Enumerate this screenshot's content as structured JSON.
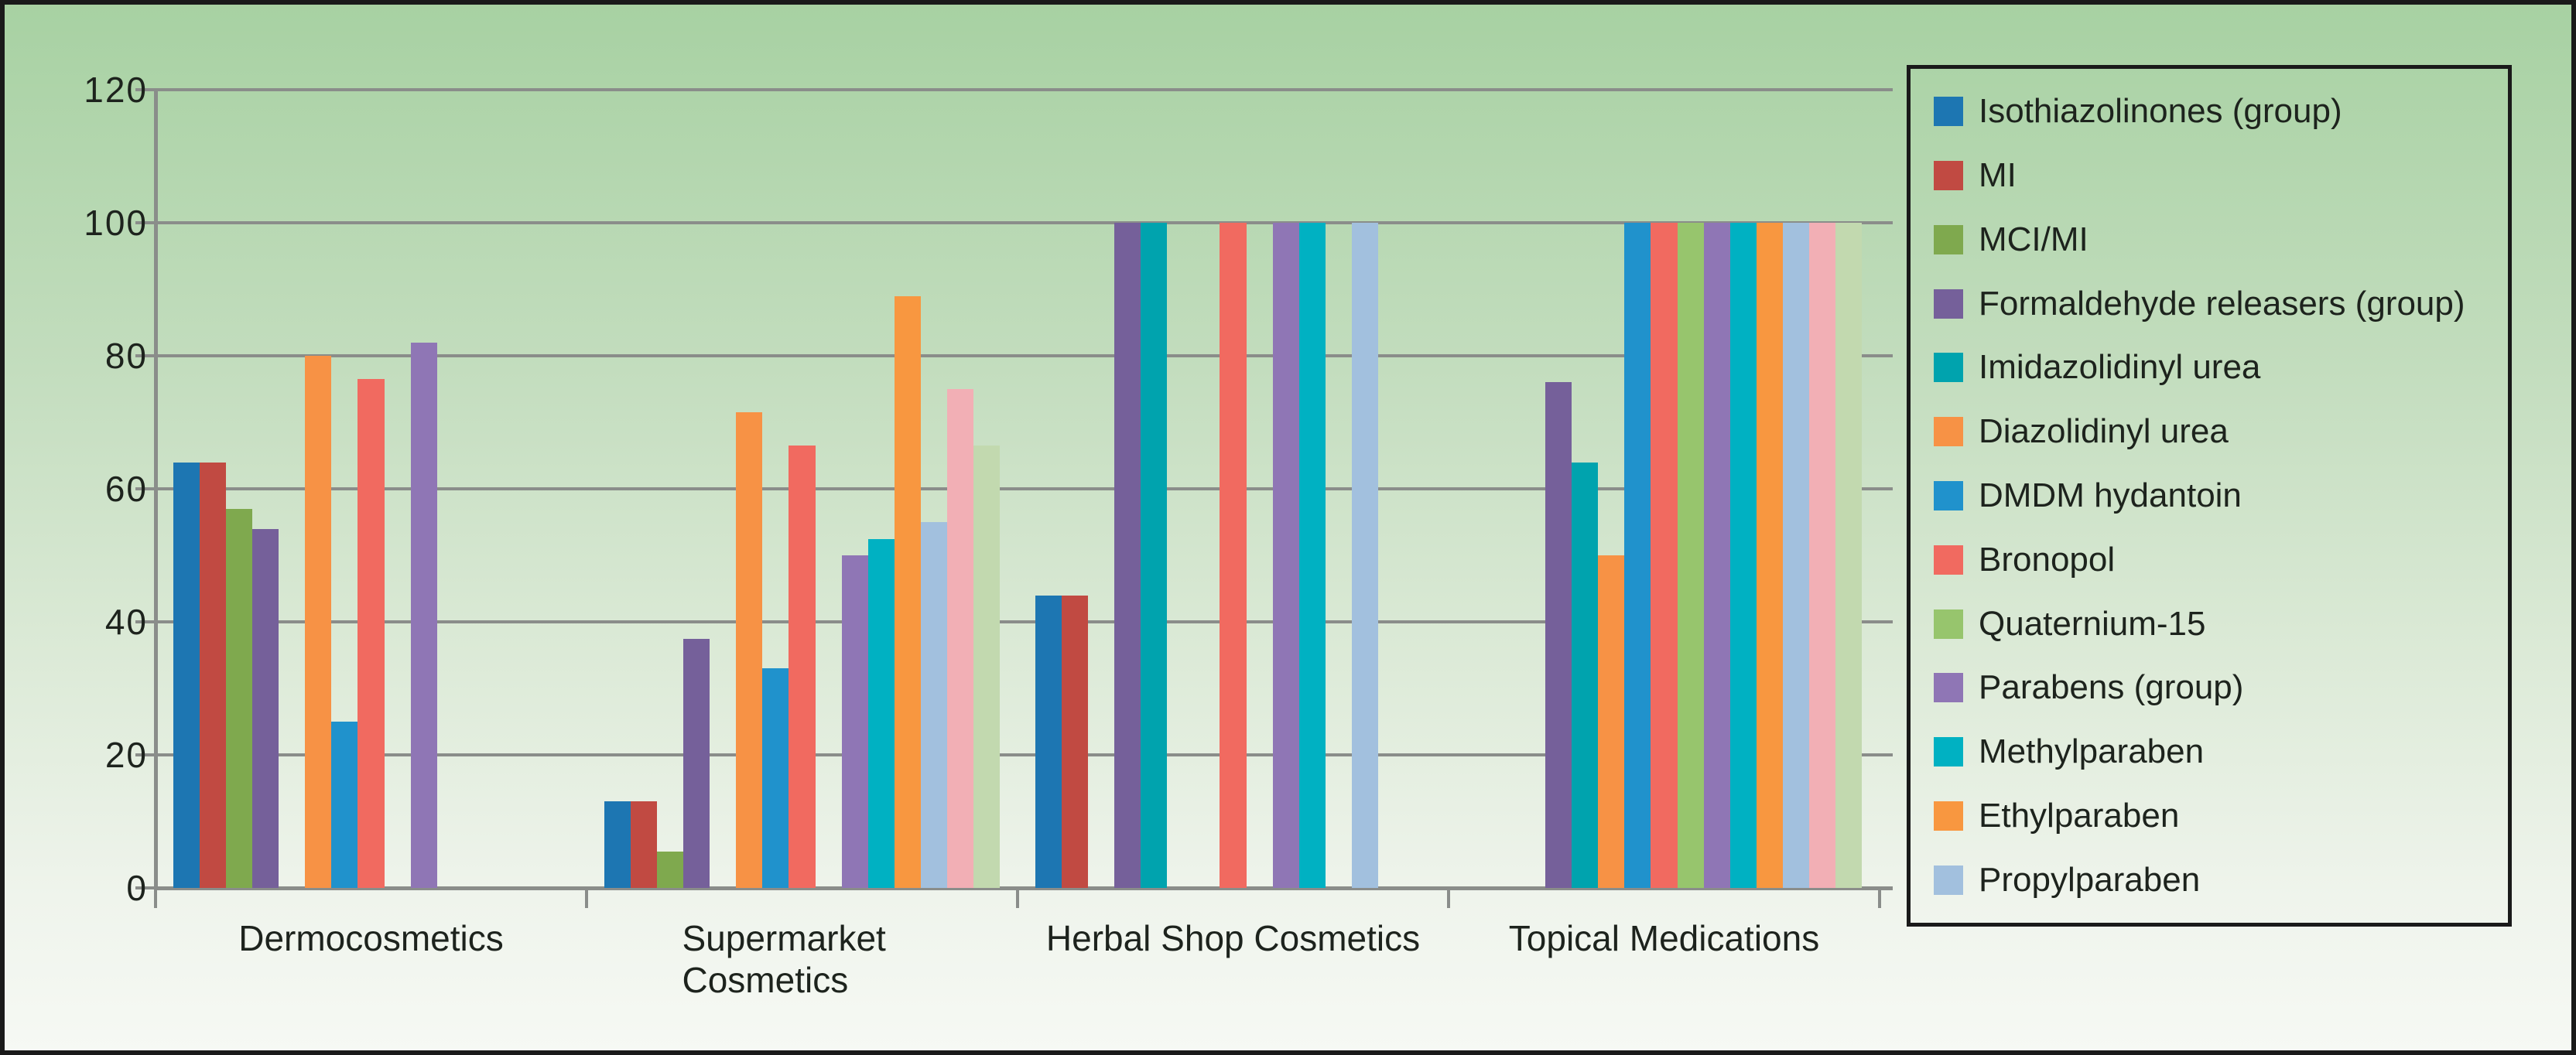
{
  "chart_data": {
    "type": "bar",
    "title": "",
    "xlabel": "",
    "ylabel": "",
    "categories": [
      "Dermocosmetics",
      "Supermarket Cosmetics",
      "Herbal Shop Cosmetics",
      "Topical Medications"
    ],
    "ylim": [
      0,
      120
    ],
    "yticks": [
      0,
      20,
      40,
      60,
      80,
      100,
      120
    ],
    "grid": true,
    "legend_position": "right",
    "series": [
      {
        "name": "Isothiazolinones (group)",
        "color": "#1d76b2",
        "in_legend": true,
        "values": [
          64,
          13,
          44,
          0
        ]
      },
      {
        "name": "MI",
        "color": "#c14a42",
        "in_legend": true,
        "values": [
          64,
          13,
          44,
          0
        ]
      },
      {
        "name": "MCI/MI",
        "color": "#7fa94e",
        "in_legend": true,
        "values": [
          57,
          5.5,
          0,
          0
        ]
      },
      {
        "name": "Formaldehyde releasers (group)",
        "color": "#75609a",
        "in_legend": true,
        "values": [
          54,
          37.5,
          100,
          76
        ]
      },
      {
        "name": "Imidazolidinyl urea",
        "color": "#00a3ae",
        "in_legend": true,
        "values": [
          0,
          0,
          100,
          64
        ]
      },
      {
        "name": "Diazolidinyl urea",
        "color": "#f79245",
        "in_legend": true,
        "values": [
          80,
          71.5,
          0,
          50
        ]
      },
      {
        "name": "DMDM hydantoin",
        "color": "#2092cc",
        "in_legend": true,
        "values": [
          25,
          33,
          0,
          100
        ]
      },
      {
        "name": "Bronopol",
        "color": "#f16a60",
        "in_legend": true,
        "values": [
          76.5,
          66.5,
          100,
          100
        ]
      },
      {
        "name": "Quaternium-15",
        "color": "#97c56d",
        "in_legend": true,
        "values": [
          0,
          0,
          0,
          100
        ]
      },
      {
        "name": "Parabens (group)",
        "color": "#8f76b5",
        "in_legend": true,
        "values": [
          82,
          50,
          100,
          100
        ]
      },
      {
        "name": "Methylparaben",
        "color": "#00b1c2",
        "in_legend": true,
        "values": [
          0,
          52.5,
          100,
          100
        ]
      },
      {
        "name": "Ethylparaben",
        "color": "#f89740",
        "in_legend": true,
        "values": [
          0,
          89,
          0,
          100
        ]
      },
      {
        "name": "Propylparaben",
        "color": "#a2c0de",
        "in_legend": true,
        "values": [
          0,
          55,
          100,
          100
        ]
      },
      {
        "name": "",
        "color": "#f2afb5",
        "in_legend": false,
        "values": [
          0,
          75,
          0,
          100
        ]
      },
      {
        "name": "",
        "color": "#c2d9af",
        "in_legend": false,
        "values": [
          0,
          66.5,
          0,
          100
        ]
      }
    ]
  },
  "colors": {
    "background_top": "#a7d1a2",
    "background_bottom": "#f6f9f4",
    "axis": "#8a8d8a",
    "text": "#1d231d",
    "border": "#1a1a1a"
  }
}
